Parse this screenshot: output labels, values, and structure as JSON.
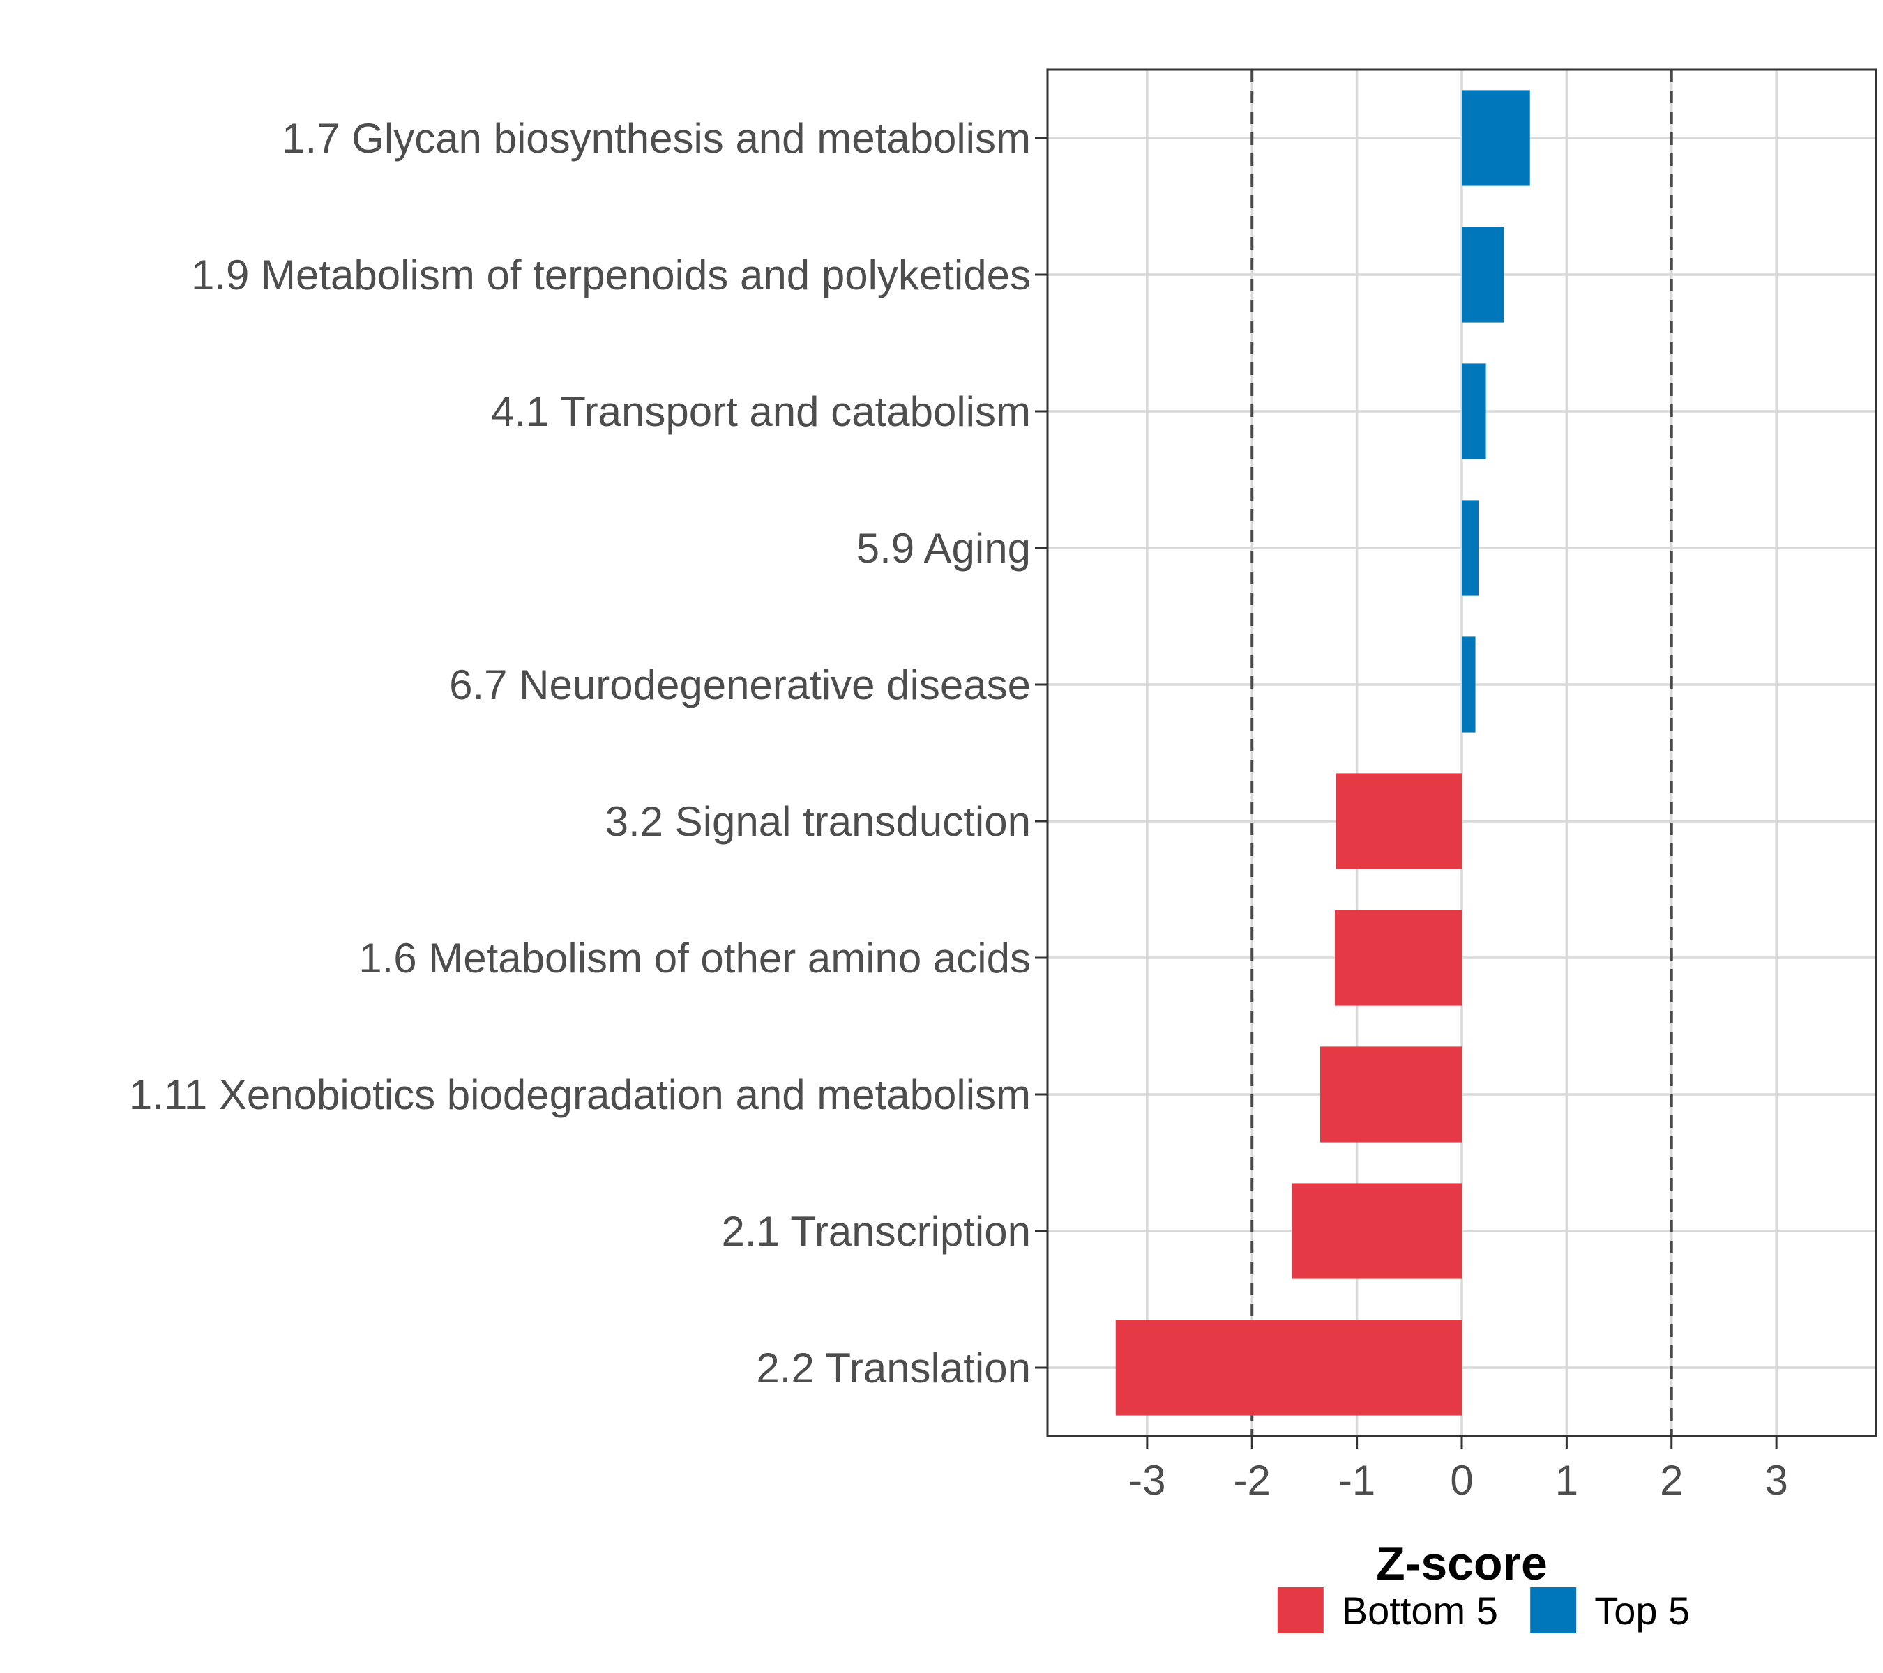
{
  "chart_data": {
    "type": "bar",
    "orientation": "horizontal",
    "title": "",
    "xlabel": "Z-score",
    "ylabel": "",
    "xlim": [
      -3.95,
      3.95
    ],
    "xticks": [
      -3,
      -2,
      -1,
      0,
      1,
      2,
      3
    ],
    "reference_lines": [
      -2,
      2
    ],
    "grid": true,
    "legend_position": "bottom",
    "series": [
      {
        "name": "Bottom 5",
        "color": "#e63946"
      },
      {
        "name": "Top 5",
        "color": "#0077bb"
      }
    ],
    "bars": [
      {
        "category": "1.7 Glycan biosynthesis and metabolism",
        "value": 0.65,
        "group": "Top 5"
      },
      {
        "category": "1.9 Metabolism of terpenoids and polyketides",
        "value": 0.4,
        "group": "Top 5"
      },
      {
        "category": "4.1 Transport and catabolism",
        "value": 0.23,
        "group": "Top 5"
      },
      {
        "category": "5.9 Aging",
        "value": 0.16,
        "group": "Top 5"
      },
      {
        "category": "6.7 Neurodegenerative disease",
        "value": 0.13,
        "group": "Top 5"
      },
      {
        "category": "3.2 Signal transduction",
        "value": -1.2,
        "group": "Bottom 5"
      },
      {
        "category": "1.6 Metabolism of other amino acids",
        "value": -1.21,
        "group": "Bottom 5"
      },
      {
        "category": "1.11 Xenobiotics biodegradation and metabolism",
        "value": -1.35,
        "group": "Bottom 5"
      },
      {
        "category": "2.1 Transcription",
        "value": -1.62,
        "group": "Bottom 5"
      },
      {
        "category": "2.2 Translation",
        "value": -3.3,
        "group": "Bottom 5"
      }
    ]
  }
}
